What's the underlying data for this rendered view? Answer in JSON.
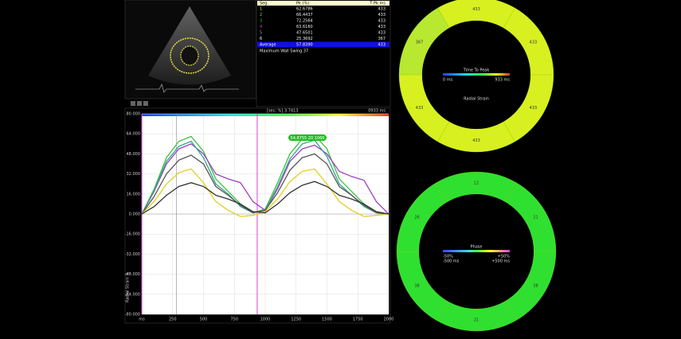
{
  "table": {
    "header": [
      "Seg.",
      "Pk (%)",
      "T Pk ms"
    ],
    "rows": [
      [
        "1",
        "62.6786",
        "433"
      ],
      [
        "2",
        "66.4437",
        "433"
      ],
      [
        "3",
        "72.2564",
        "433"
      ],
      [
        "4",
        "63.6160",
        "433"
      ],
      [
        "5",
        "47.6501",
        "433"
      ],
      [
        "6",
        "25.3692",
        "367"
      ]
    ],
    "row_colors": [
      "#e0e020",
      "#40e0a0",
      "#40c040",
      "#c040e0",
      "#a0a0a0",
      "#ffffff"
    ],
    "average": [
      "Average",
      "57.8390",
      "433"
    ],
    "footer": "Maximum Wall Swing 37"
  },
  "strain_chart": {
    "type": "line",
    "header_left": "[sec; %] 3.7413",
    "header_right": "0933 ms",
    "y_label": "Radial Strain %",
    "ylim": [
      -80,
      80
    ],
    "yticks": [
      {
        "value": 80,
        "label": "80.000"
      },
      {
        "value": 64,
        "label": "64.000"
      },
      {
        "value": 48,
        "label": "48.000"
      },
      {
        "value": 32,
        "label": "32.000"
      },
      {
        "value": 16,
        "label": "16.000"
      },
      {
        "value": 0,
        "label": "0.000"
      },
      {
        "value": -16,
        "label": "-16.000"
      },
      {
        "value": -32,
        "label": "-32.000"
      },
      {
        "value": -48,
        "label": "-48.000"
      },
      {
        "value": -64,
        "label": "-64.000"
      },
      {
        "value": -80,
        "label": "-80.000"
      }
    ],
    "xlim": [
      0,
      2000
    ],
    "xticks": [
      {
        "value": 0,
        "label": "ms"
      },
      250,
      500,
      750,
      1000,
      1250,
      1500,
      1750,
      2000
    ],
    "grid": true,
    "cycle_lines": [
      0,
      935
    ],
    "cursor": 280,
    "annotation": "54.8755 20 1066",
    "x": [
      0,
      100,
      200,
      300,
      400,
      500,
      600,
      700,
      800,
      900,
      1000,
      1100,
      1200,
      1300,
      1400,
      1500,
      1600,
      1700,
      1800,
      1900,
      2000
    ],
    "series": [
      {
        "color": "#40c040",
        "values": [
          0,
          20,
          45,
          58,
          62,
          50,
          28,
          18,
          8,
          1,
          4,
          25,
          48,
          60,
          63,
          52,
          28,
          18,
          8,
          1,
          0
        ]
      },
      {
        "color": "#a040c0",
        "values": [
          0,
          18,
          40,
          52,
          56,
          48,
          32,
          28,
          25,
          10,
          3,
          20,
          42,
          52,
          55,
          48,
          34,
          30,
          27,
          10,
          0
        ]
      },
      {
        "color": "#30a890",
        "values": [
          0,
          19,
          42,
          54,
          58,
          45,
          24,
          16,
          6,
          1,
          3,
          22,
          44,
          56,
          59,
          46,
          24,
          15,
          6,
          1,
          0
        ]
      },
      {
        "color": "#555555",
        "values": [
          0,
          14,
          32,
          43,
          47,
          40,
          22,
          15,
          7,
          1,
          3,
          17,
          35,
          45,
          48,
          40,
          22,
          15,
          7,
          1,
          0
        ]
      },
      {
        "color": "#e0d020",
        "values": [
          0,
          10,
          24,
          33,
          36,
          25,
          10,
          3,
          -2,
          -1,
          2,
          12,
          26,
          34,
          36,
          24,
          10,
          3,
          -2,
          -1,
          0
        ]
      },
      {
        "color": "#333333",
        "values": [
          0,
          6,
          15,
          22,
          25,
          22,
          15,
          12,
          8,
          2,
          1,
          8,
          17,
          23,
          26,
          22,
          15,
          12,
          8,
          2,
          0
        ]
      }
    ]
  },
  "bullseyes": [
    {
      "title": "Time To Peak",
      "scale_min": "0 ms",
      "scale_max": "933 ms",
      "subtitle": "Radial Strain",
      "segments": [
        {
          "label": "433",
          "color": "#d8f020"
        },
        {
          "label": "433",
          "color": "#d8f020"
        },
        {
          "label": "433",
          "color": "#d8f020"
        },
        {
          "label": "433",
          "color": "#d8f020"
        },
        {
          "label": "433",
          "color": "#d8f020"
        },
        {
          "label": "367",
          "color": "#b8e830"
        }
      ]
    },
    {
      "title": "Phase",
      "scale_min": "-50%",
      "scale_max": "+50%",
      "scale_min2": "-500 ms",
      "scale_max2": "+500 ms",
      "segments": [
        {
          "label": "12",
          "color": "#30e030"
        },
        {
          "label": "21",
          "color": "#30e030"
        },
        {
          "label": "38",
          "color": "#30e030"
        },
        {
          "label": "21",
          "color": "#30e030"
        },
        {
          "label": "38",
          "color": "#30e030"
        },
        {
          "label": "26",
          "color": "#30e030"
        }
      ]
    }
  ]
}
